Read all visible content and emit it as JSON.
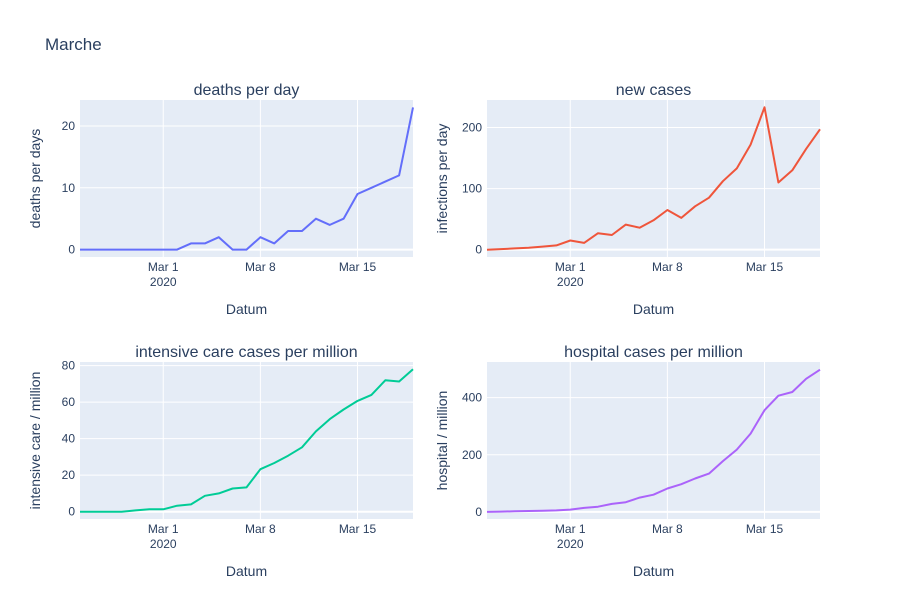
{
  "page": {
    "title": "Marche"
  },
  "chart_data": [
    {
      "type": "line",
      "title": "deaths per day",
      "xlabel": "Datum",
      "ylabel": "deaths per days",
      "color": "#636efa",
      "x_ticks": [
        {
          "day": 6,
          "label": "Mar 1",
          "sub": "2020"
        },
        {
          "day": 13,
          "label": "Mar 8",
          "sub": ""
        },
        {
          "day": 20,
          "label": "Mar 15",
          "sub": ""
        }
      ],
      "y_ticks": [
        0,
        10,
        20
      ],
      "ylim": [
        -1.2,
        24.2
      ],
      "x": [
        "2020-02-24",
        "2020-02-25",
        "2020-02-26",
        "2020-02-27",
        "2020-02-28",
        "2020-02-29",
        "2020-03-01",
        "2020-03-02",
        "2020-03-03",
        "2020-03-04",
        "2020-03-05",
        "2020-03-06",
        "2020-03-07",
        "2020-03-08",
        "2020-03-09",
        "2020-03-10",
        "2020-03-11",
        "2020-03-12",
        "2020-03-13",
        "2020-03-14",
        "2020-03-15",
        "2020-03-16",
        "2020-03-17",
        "2020-03-18",
        "2020-03-19"
      ],
      "values": [
        0,
        0,
        0,
        0,
        0,
        0,
        0,
        0,
        1,
        1,
        2,
        0,
        0,
        2,
        1,
        3,
        3,
        5,
        4,
        5,
        9,
        10,
        11,
        12,
        23
      ]
    },
    {
      "type": "line",
      "title": "new cases",
      "xlabel": "Datum",
      "ylabel": "infections per day",
      "color": "#ef553b",
      "x_ticks": [
        {
          "day": 6,
          "label": "Mar 1",
          "sub": "2020"
        },
        {
          "day": 13,
          "label": "Mar 8",
          "sub": ""
        },
        {
          "day": 20,
          "label": "Mar 15",
          "sub": ""
        }
      ],
      "y_ticks": [
        0,
        100,
        200
      ],
      "ylim": [
        -12,
        245
      ],
      "x": [
        "2020-02-24",
        "2020-02-25",
        "2020-02-26",
        "2020-02-27",
        "2020-02-28",
        "2020-02-29",
        "2020-03-01",
        "2020-03-02",
        "2020-03-03",
        "2020-03-04",
        "2020-03-05",
        "2020-03-06",
        "2020-03-07",
        "2020-03-08",
        "2020-03-09",
        "2020-03-10",
        "2020-03-11",
        "2020-03-12",
        "2020-03-13",
        "2020-03-14",
        "2020-03-15",
        "2020-03-16",
        "2020-03-17",
        "2020-03-18",
        "2020-03-19"
      ],
      "values": [
        0,
        1,
        2,
        3,
        5,
        7,
        15,
        11,
        27,
        24,
        41,
        36,
        48,
        65,
        52,
        71,
        85,
        112,
        133,
        172,
        233,
        110,
        130,
        165,
        197
      ]
    },
    {
      "type": "line",
      "title": "intensive care cases per million",
      "xlabel": "Datum",
      "ylabel": "intensive care / million",
      "color": "#00cc96",
      "x_ticks": [
        {
          "day": 6,
          "label": "Mar 1",
          "sub": "2020"
        },
        {
          "day": 13,
          "label": "Mar 8",
          "sub": ""
        },
        {
          "day": 20,
          "label": "Mar 15",
          "sub": ""
        }
      ],
      "y_ticks": [
        0,
        20,
        40,
        60,
        80
      ],
      "ylim": [
        -4,
        82
      ],
      "x": [
        "2020-02-24",
        "2020-02-25",
        "2020-02-26",
        "2020-02-27",
        "2020-02-28",
        "2020-02-29",
        "2020-03-01",
        "2020-03-02",
        "2020-03-03",
        "2020-03-04",
        "2020-03-05",
        "2020-03-06",
        "2020-03-07",
        "2020-03-08",
        "2020-03-09",
        "2020-03-10",
        "2020-03-11",
        "2020-03-12",
        "2020-03-13",
        "2020-03-14",
        "2020-03-15",
        "2020-03-16",
        "2020-03-17",
        "2020-03-18",
        "2020-03-19"
      ],
      "values": [
        0,
        0,
        0,
        0,
        0.7,
        1.3,
        1.3,
        3.3,
        4,
        8.7,
        10,
        12.7,
        13.3,
        23.3,
        26.7,
        30.7,
        35.3,
        44,
        50.7,
        56,
        60.7,
        64,
        72,
        71.3,
        78
      ]
    },
    {
      "type": "line",
      "title": "hospital cases per million",
      "xlabel": "Datum",
      "ylabel": "hospital / million",
      "color": "#ab63fa",
      "x_ticks": [
        {
          "day": 6,
          "label": "Mar 1",
          "sub": "2020"
        },
        {
          "day": 13,
          "label": "Mar 8",
          "sub": ""
        },
        {
          "day": 20,
          "label": "Mar 15",
          "sub": ""
        }
      ],
      "y_ticks": [
        0,
        200,
        400
      ],
      "ylim": [
        -25,
        525
      ],
      "x": [
        "2020-02-24",
        "2020-02-25",
        "2020-02-26",
        "2020-02-27",
        "2020-02-28",
        "2020-02-29",
        "2020-03-01",
        "2020-03-02",
        "2020-03-03",
        "2020-03-04",
        "2020-03-05",
        "2020-03-06",
        "2020-03-07",
        "2020-03-08",
        "2020-03-09",
        "2020-03-10",
        "2020-03-11",
        "2020-03-12",
        "2020-03-13",
        "2020-03-14",
        "2020-03-15",
        "2020-03-16",
        "2020-03-17",
        "2020-03-18",
        "2020-03-19"
      ],
      "values": [
        0,
        1,
        2,
        3,
        4,
        5,
        8,
        14,
        18,
        28,
        34,
        50,
        60,
        82,
        97,
        117,
        134,
        178,
        218,
        274,
        356,
        407,
        420,
        466,
        498
      ]
    }
  ]
}
